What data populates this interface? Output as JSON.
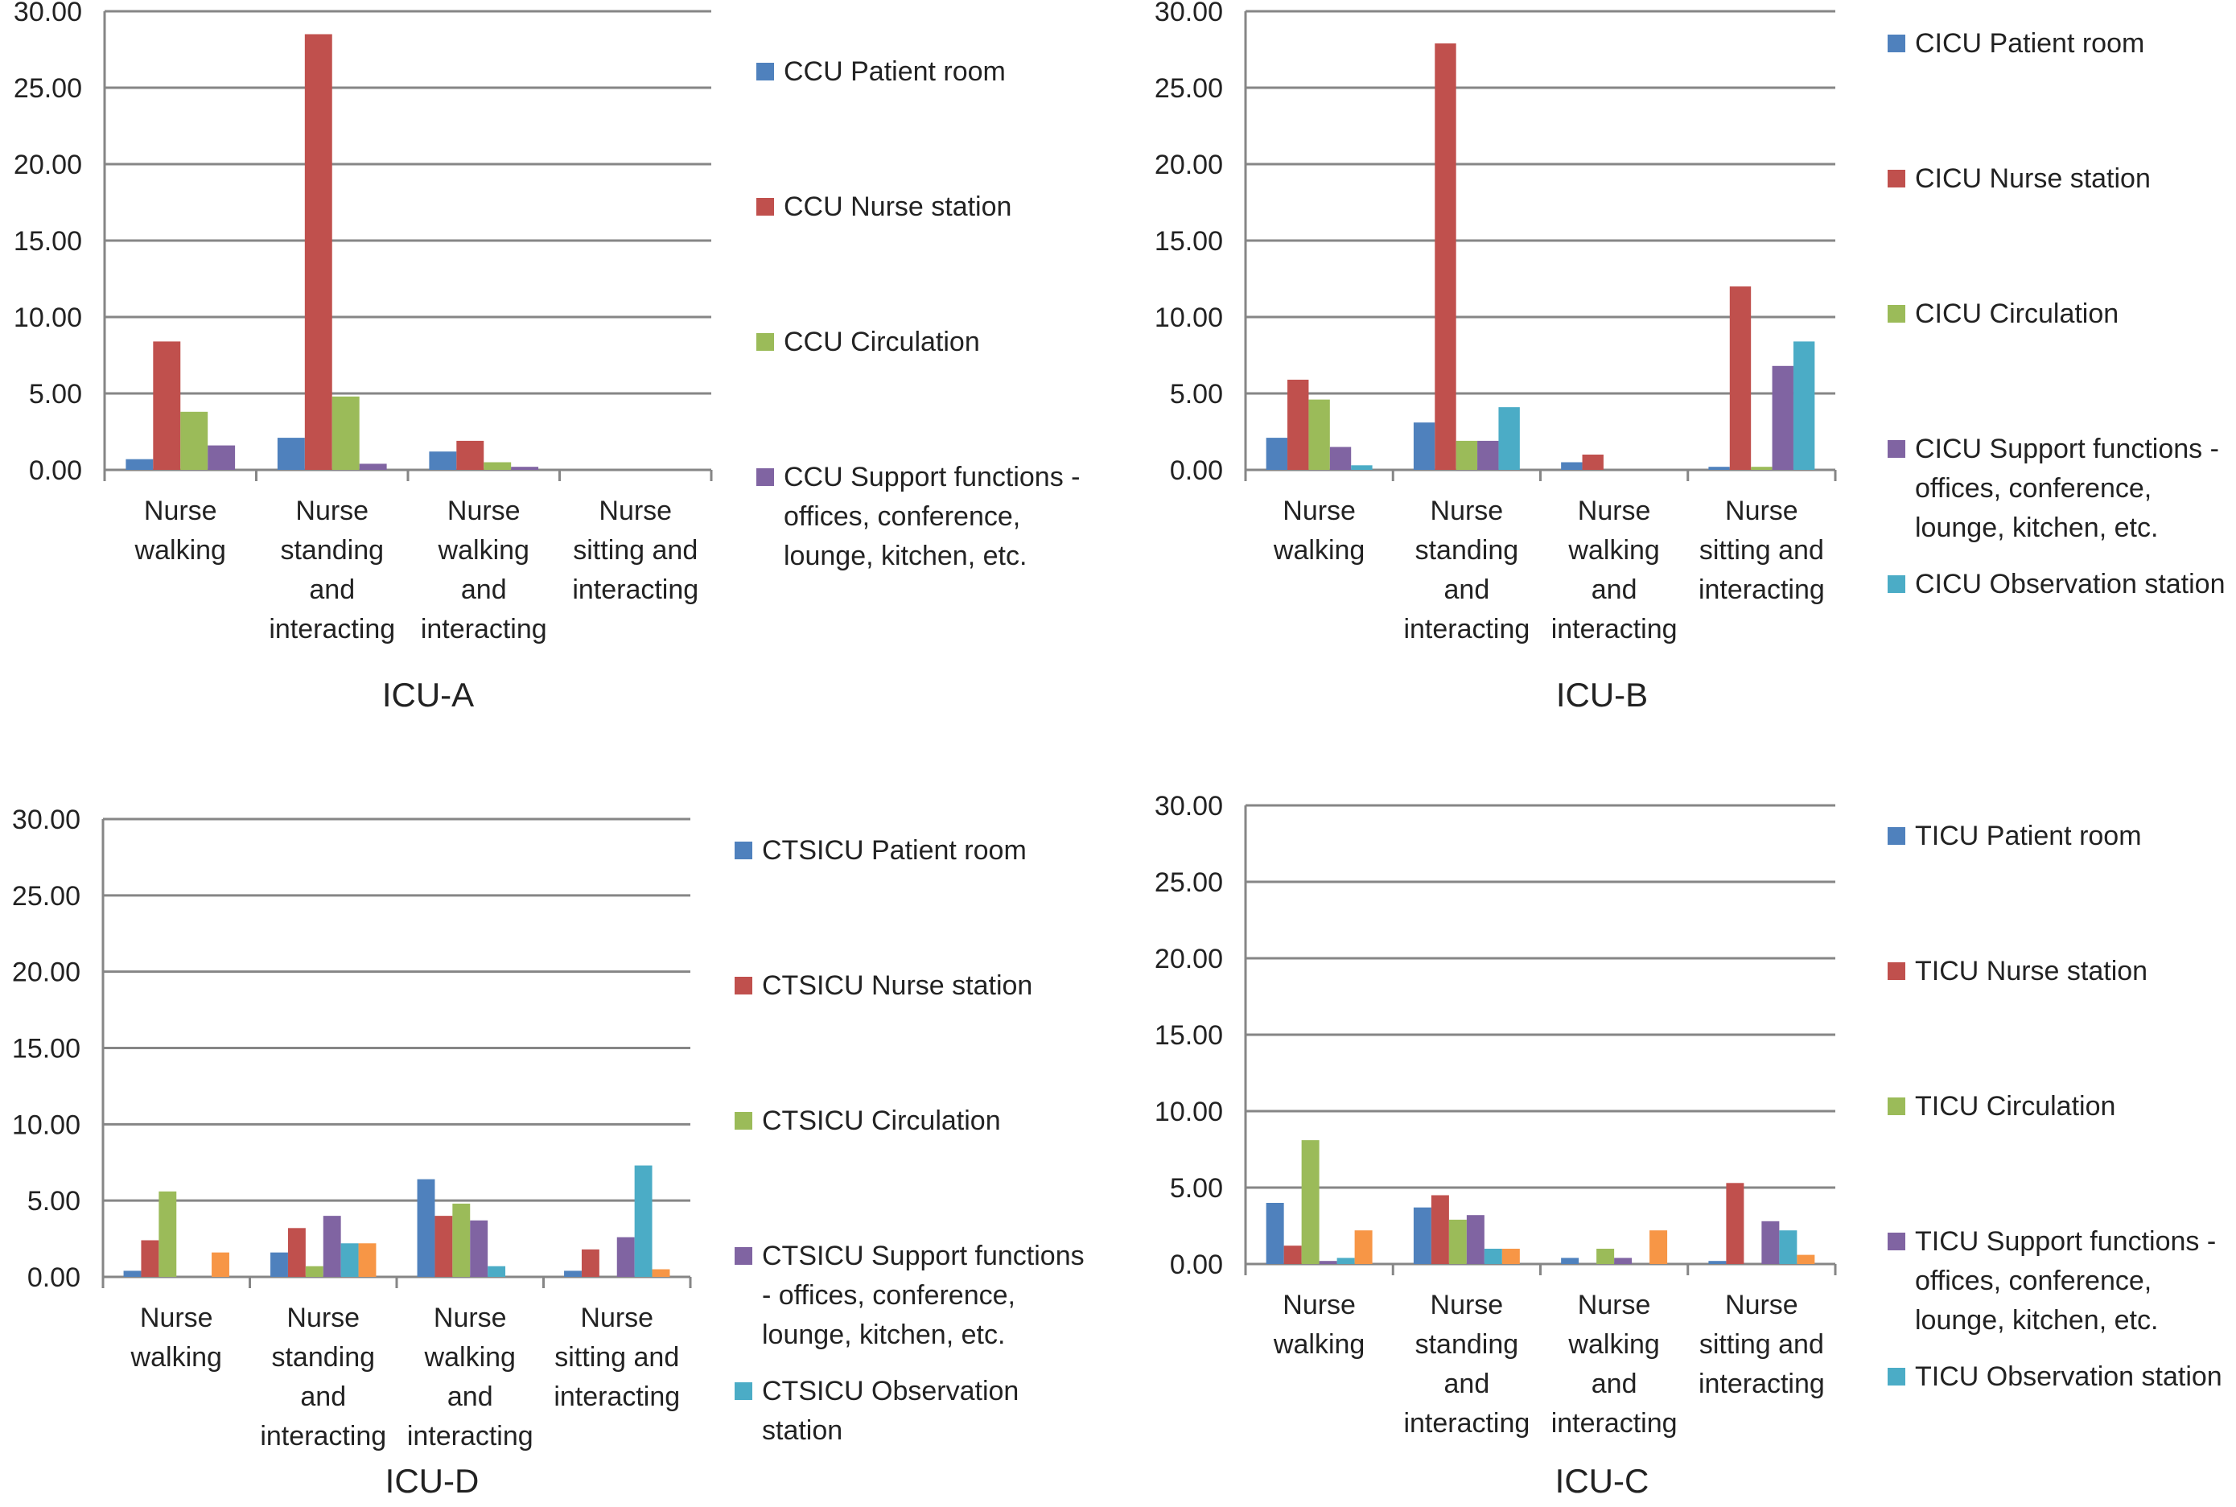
{
  "colors": {
    "patient_room": "#4F81BD",
    "nurse_station": "#C0504D",
    "circulation": "#9BBB59",
    "support": "#8064A2",
    "observation": "#4BACC6",
    "other": "#F79646",
    "grid": "#868686"
  },
  "chart_data": [
    {
      "type": "bar",
      "title": "ICU-A",
      "ylim": [
        0,
        30
      ],
      "yticks": [
        "0.00",
        "5.00",
        "10.00",
        "15.00",
        "20.00",
        "25.00",
        "30.00"
      ],
      "categories": [
        [
          "Nurse",
          "walking"
        ],
        [
          "Nurse",
          "standing",
          "and",
          "interacting"
        ],
        [
          "Nurse",
          "walking",
          "and",
          "interacting"
        ],
        [
          "Nurse",
          "sitting and",
          "interacting"
        ]
      ],
      "series": [
        {
          "name": "CCU Patient room",
          "color_key": "patient_room",
          "legend_lines": [
            "CCU Patient room"
          ],
          "values": [
            0.7,
            2.1,
            1.2,
            0
          ]
        },
        {
          "name": "CCU Nurse station",
          "color_key": "nurse_station",
          "legend_lines": [
            "CCU Nurse station"
          ],
          "values": [
            8.4,
            28.5,
            1.9,
            0
          ]
        },
        {
          "name": "CCU Circulation",
          "color_key": "circulation",
          "legend_lines": [
            "CCU Circulation"
          ],
          "values": [
            3.8,
            4.8,
            0.5,
            0
          ]
        },
        {
          "name": "CCU Support functions - offices, conference, lounge, kitchen, etc.",
          "color_key": "support",
          "legend_lines": [
            "CCU Support functions -",
            "offices, conference,",
            "lounge, kitchen, etc."
          ],
          "values": [
            1.6,
            0.4,
            0.2,
            0
          ]
        }
      ]
    },
    {
      "type": "bar",
      "title": "ICU-B",
      "ylim": [
        0,
        30
      ],
      "yticks": [
        "0.00",
        "5.00",
        "10.00",
        "15.00",
        "20.00",
        "25.00",
        "30.00"
      ],
      "categories": [
        [
          "Nurse",
          "walking"
        ],
        [
          "Nurse",
          "standing",
          "and",
          "interacting"
        ],
        [
          "Nurse",
          "walking",
          "and",
          "interacting"
        ],
        [
          "Nurse",
          "sitting and",
          "interacting"
        ]
      ],
      "series": [
        {
          "name": "CICU Patient room",
          "color_key": "patient_room",
          "legend_lines": [
            "CICU Patient room"
          ],
          "values": [
            2.1,
            3.1,
            0.5,
            0.2
          ]
        },
        {
          "name": "CICU Nurse station",
          "color_key": "nurse_station",
          "legend_lines": [
            "CICU Nurse station"
          ],
          "values": [
            5.9,
            27.9,
            1.0,
            12.0
          ]
        },
        {
          "name": "CICU Circulation",
          "color_key": "circulation",
          "legend_lines": [
            "CICU Circulation"
          ],
          "values": [
            4.6,
            1.9,
            0,
            0.2
          ]
        },
        {
          "name": "CICU Support functions - offices, conference, lounge, kitchen, etc.",
          "color_key": "support",
          "legend_lines": [
            "CICU Support functions -",
            "offices, conference,",
            "lounge, kitchen, etc."
          ],
          "values": [
            1.5,
            1.9,
            0,
            6.8
          ]
        },
        {
          "name": "CICU Observation station",
          "color_key": "observation",
          "legend_lines": [
            "CICU Observation station"
          ],
          "values": [
            0.3,
            4.1,
            0,
            8.4
          ]
        }
      ]
    },
    {
      "type": "bar",
      "title": "ICU-D",
      "ylim": [
        0,
        30
      ],
      "yticks": [
        "0.00",
        "5.00",
        "10.00",
        "15.00",
        "20.00",
        "25.00",
        "30.00"
      ],
      "categories": [
        [
          "Nurse",
          "walking"
        ],
        [
          "Nurse",
          "standing",
          "and",
          "interacting"
        ],
        [
          "Nurse",
          "walking",
          "and",
          "interacting"
        ],
        [
          "Nurse",
          "sitting and",
          "interacting"
        ]
      ],
      "series": [
        {
          "name": "CTSICU Patient room",
          "color_key": "patient_room",
          "legend_lines": [
            "CTSICU Patient room"
          ],
          "values": [
            0.4,
            1.6,
            6.4,
            0.4
          ]
        },
        {
          "name": "CTSICU Nurse station",
          "color_key": "nurse_station",
          "legend_lines": [
            "CTSICU Nurse station"
          ],
          "values": [
            2.4,
            3.2,
            4.0,
            1.8
          ]
        },
        {
          "name": "CTSICU Circulation",
          "color_key": "circulation",
          "legend_lines": [
            "CTSICU Circulation"
          ],
          "values": [
            5.6,
            0.7,
            4.8,
            0
          ]
        },
        {
          "name": "CTSICU Support functions - offices, conference, lounge, kitchen, etc.",
          "color_key": "support",
          "legend_lines": [
            "CTSICU Support functions",
            "- offices, conference,",
            "lounge, kitchen, etc."
          ],
          "values": [
            0,
            4.0,
            3.7,
            2.6
          ]
        },
        {
          "name": "CTSICU Observation station",
          "color_key": "observation",
          "legend_lines": [
            "CTSICU Observation",
            "station"
          ],
          "values": [
            0,
            2.2,
            0.7,
            7.3
          ]
        },
        {
          "name": "",
          "color_key": "other",
          "legend_lines": [],
          "values": [
            1.6,
            2.2,
            0,
            0.5
          ]
        }
      ]
    },
    {
      "type": "bar",
      "title": "ICU-C",
      "ylim": [
        0,
        30
      ],
      "yticks": [
        "0.00",
        "5.00",
        "10.00",
        "15.00",
        "20.00",
        "25.00",
        "30.00"
      ],
      "categories": [
        [
          "Nurse",
          "walking"
        ],
        [
          "Nurse",
          "standing",
          "and",
          "interacting"
        ],
        [
          "Nurse",
          "walking",
          "and",
          "interacting"
        ],
        [
          "Nurse",
          "sitting and",
          "interacting"
        ]
      ],
      "series": [
        {
          "name": "TICU Patient room",
          "color_key": "patient_room",
          "legend_lines": [
            "TICU Patient room"
          ],
          "values": [
            4.0,
            3.7,
            0.4,
            0.2
          ]
        },
        {
          "name": "TICU Nurse station",
          "color_key": "nurse_station",
          "legend_lines": [
            "TICU Nurse station"
          ],
          "values": [
            1.2,
            4.5,
            0,
            5.3
          ]
        },
        {
          "name": "TICU Circulation",
          "color_key": "circulation",
          "legend_lines": [
            "TICU Circulation"
          ],
          "values": [
            8.1,
            2.9,
            1.0,
            0
          ]
        },
        {
          "name": "TICU Support functions - offices, conference, lounge, kitchen, etc.",
          "color_key": "support",
          "legend_lines": [
            "TICU Support functions -",
            "offices, conference,",
            "lounge, kitchen, etc."
          ],
          "values": [
            0.2,
            3.2,
            0.4,
            2.8
          ]
        },
        {
          "name": "TICU Observation station",
          "color_key": "observation",
          "legend_lines": [
            "TICU Observation station"
          ],
          "values": [
            0.4,
            1.0,
            0,
            2.2
          ]
        },
        {
          "name": "",
          "color_key": "other",
          "legend_lines": [],
          "values": [
            2.2,
            1.0,
            2.2,
            0.6
          ]
        }
      ]
    }
  ]
}
